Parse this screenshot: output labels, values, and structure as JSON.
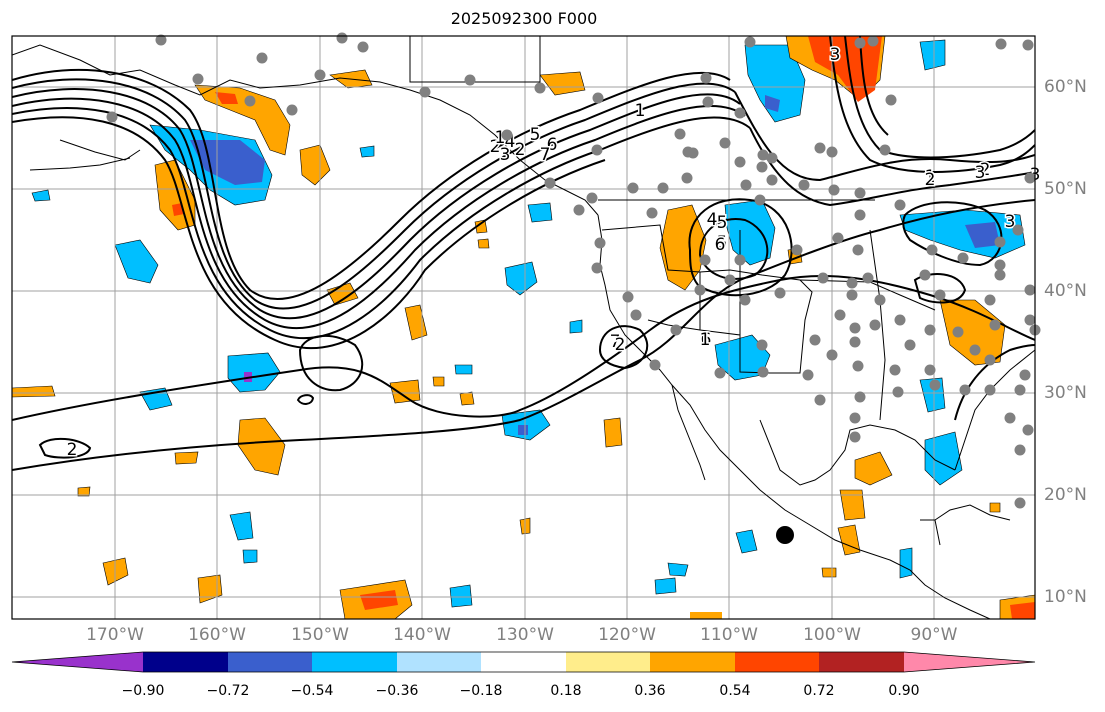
{
  "title": "2025092300 F000",
  "lon_labels": [
    "170°W",
    "160°W",
    "150°W",
    "140°W",
    "130°W",
    "120°W",
    "110°W",
    "100°W",
    "90°W"
  ],
  "lat_labels": [
    "60°N",
    "50°N",
    "40°N",
    "30°N",
    "20°N",
    "10°N"
  ],
  "colorbar": {
    "ticks": [
      "−0.90",
      "−0.72",
      "−0.54",
      "−0.36",
      "−0.18",
      "0.18",
      "0.36",
      "0.54",
      "0.72",
      "0.90"
    ],
    "colors": [
      "#9932cc",
      "#00008b",
      "#3a5fcd",
      "#00bfff",
      "#b0e2ff",
      "#ffffff",
      "#ffed8b",
      "#ffa500",
      "#ff4500",
      "#b22222",
      "#ff88aa"
    ]
  },
  "contour_labels": [
    "1",
    "2",
    "3",
    "4",
    "5",
    "6",
    "7",
    "1",
    "2",
    "3",
    "4",
    "5",
    "6",
    "7",
    "2",
    "3",
    "1",
    "2",
    "2",
    "3",
    "5",
    "6",
    "1",
    "2",
    "3"
  ],
  "colors": {
    "positive_light": "#ffed8b",
    "positive": "#ffa500",
    "positive_strong": "#ff4500",
    "negative": "#00bfff",
    "negative_strong": "#3a5fcd",
    "negative_extreme": "#9932cc"
  }
}
